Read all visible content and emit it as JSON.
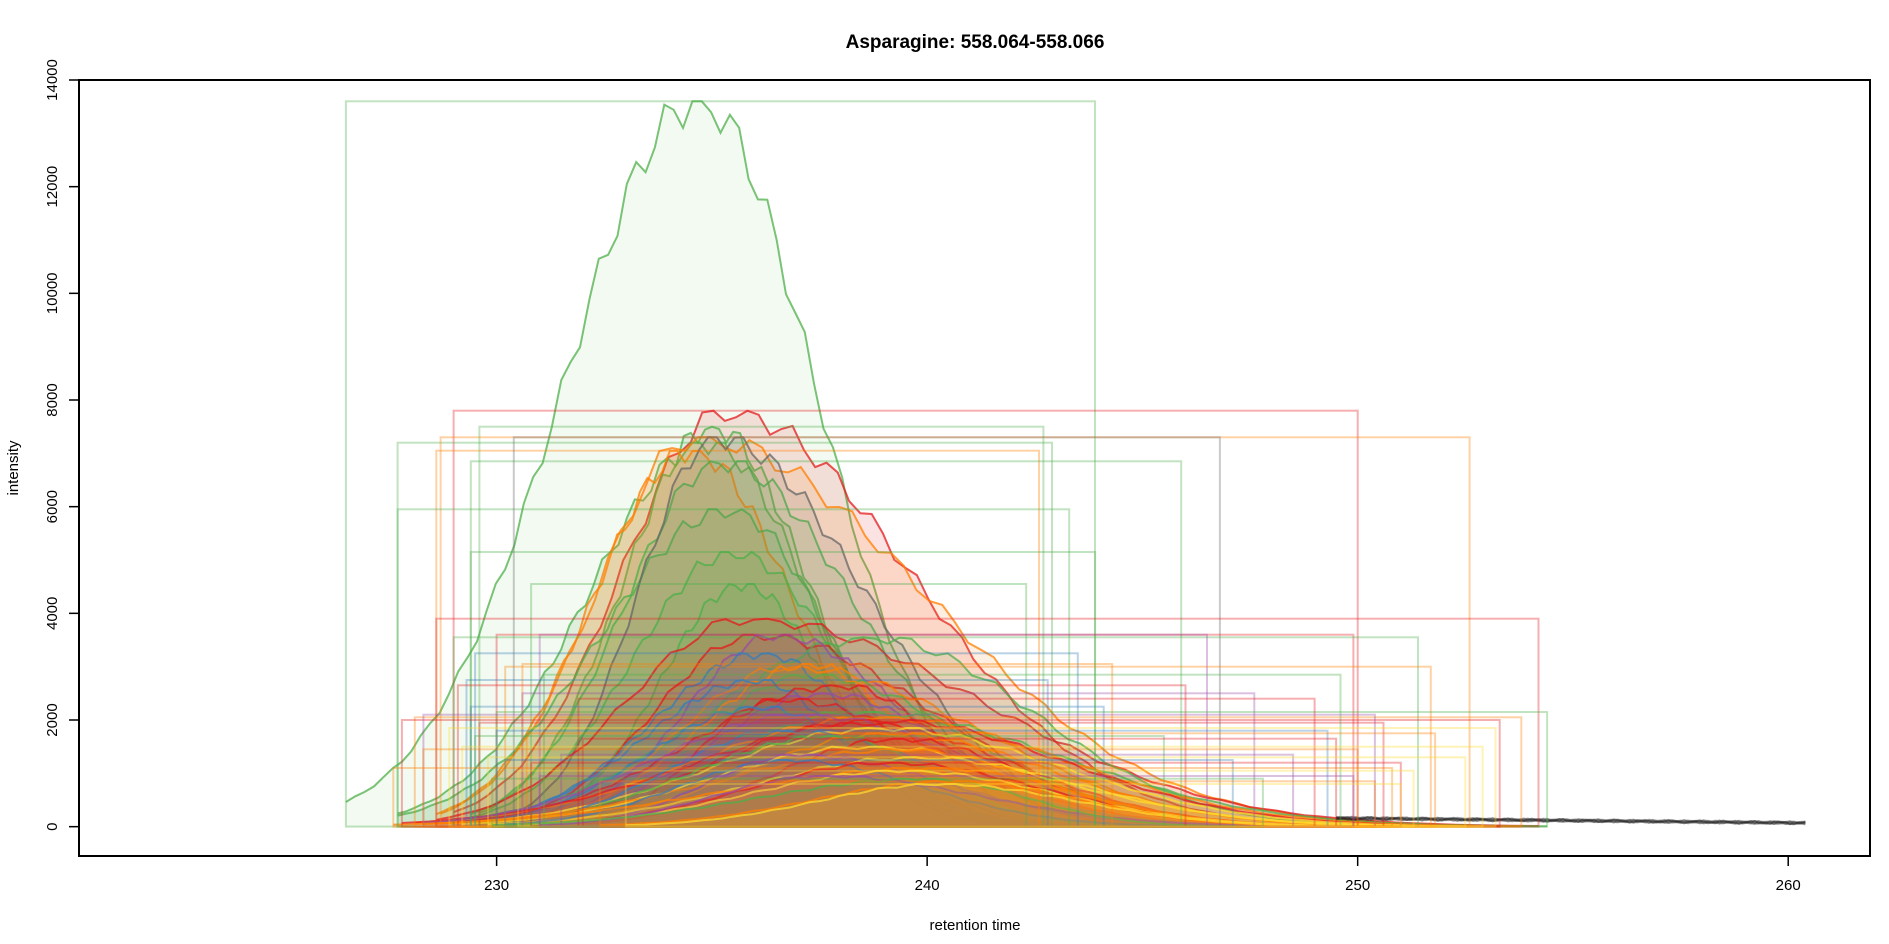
{
  "chart_data": {
    "type": "area",
    "title": "Asparagine: 558.064-558.066",
    "xlabel": "retention time",
    "ylabel": "intensity",
    "xlim": [
      220.3,
      261.9
    ],
    "ylim": [
      -550,
      14000
    ],
    "x_ticks": [
      230,
      240,
      250,
      260
    ],
    "y_ticks": [
      0,
      2000,
      4000,
      6000,
      8000,
      10000,
      12000,
      14000
    ],
    "x_tick_labels": [
      "230",
      "240",
      "250",
      "260"
    ],
    "y_tick_labels": [
      "0",
      "2000",
      "4000",
      "6000",
      "8000",
      "10000",
      "12000",
      "14000"
    ],
    "grid": false,
    "legend": "none",
    "colors": {
      "green": "#4daf4a",
      "red": "#e41a1c",
      "orange": "#ff7f00",
      "yellow": "#ffd92f",
      "blue": "#377eb8",
      "purple": "#984ea3",
      "gray": "#666666",
      "tail": "#1a1a1a"
    },
    "peaks": [
      {
        "color": "green",
        "height": 13600,
        "apex": 234.7,
        "start": 226.5,
        "end": 243.9,
        "fill": "#eef8ec",
        "fill_opacity": 0.7
      },
      {
        "color": "red",
        "height": 7800,
        "apex": 235.3,
        "start": 229.0,
        "end": 250.0
      },
      {
        "color": "green",
        "height": 7500,
        "apex": 235.0,
        "start": 229.6,
        "end": 242.7
      },
      {
        "color": "green",
        "height": 7200,
        "apex": 234.9,
        "start": 227.7,
        "end": 242.9
      },
      {
        "color": "orange",
        "height": 7300,
        "apex": 234.6,
        "start": 228.7,
        "end": 252.6
      },
      {
        "color": "orange",
        "height": 7050,
        "apex": 234.5,
        "start": 228.6,
        "end": 242.6
      },
      {
        "color": "green",
        "height": 6850,
        "apex": 235.2,
        "start": 229.4,
        "end": 245.9
      },
      {
        "color": "green",
        "height": 5950,
        "apex": 235.4,
        "start": 227.7,
        "end": 243.3
      },
      {
        "color": "gray",
        "height": 7300,
        "apex": 235.1,
        "start": 230.4,
        "end": 246.8
      },
      {
        "color": "green",
        "height": 5150,
        "apex": 235.5,
        "start": 229.4,
        "end": 243.9
      },
      {
        "color": "green",
        "height": 4550,
        "apex": 235.7,
        "start": 230.8,
        "end": 242.3
      },
      {
        "color": "red",
        "height": 3900,
        "apex": 235.8,
        "start": 228.6,
        "end": 254.2
      },
      {
        "color": "red",
        "height": 3600,
        "apex": 236.0,
        "start": 230.0,
        "end": 249.9
      },
      {
        "color": "green",
        "height": 3550,
        "apex": 238.7,
        "start": 229.0,
        "end": 251.4
      },
      {
        "color": "purple",
        "height": 3600,
        "apex": 236.5,
        "start": 231.0,
        "end": 246.5
      },
      {
        "color": "orange",
        "height": 3000,
        "apex": 236.8,
        "start": 230.2,
        "end": 251.7
      },
      {
        "color": "green",
        "height": 2850,
        "apex": 237.2,
        "start": 231.1,
        "end": 249.6
      },
      {
        "color": "blue",
        "height": 3250,
        "apex": 236.2,
        "start": 229.5,
        "end": 243.5
      },
      {
        "color": "orange",
        "height": 3050,
        "apex": 237.3,
        "start": 230.6,
        "end": 244.3
      },
      {
        "color": "blue",
        "height": 2750,
        "apex": 236.0,
        "start": 229.3,
        "end": 242.8
      },
      {
        "color": "red",
        "height": 2650,
        "apex": 238.0,
        "start": 229.1,
        "end": 246.0
      },
      {
        "color": "purple",
        "height": 2500,
        "apex": 237.6,
        "start": 230.6,
        "end": 247.6
      },
      {
        "color": "green",
        "height": 2150,
        "apex": 238.4,
        "start": 230.0,
        "end": 254.4
      },
      {
        "color": "red",
        "height": 2400,
        "apex": 236.5,
        "start": 231.9,
        "end": 249.0
      },
      {
        "color": "blue",
        "height": 2250,
        "apex": 236.1,
        "start": 229.4,
        "end": 244.1
      },
      {
        "color": "orange",
        "height": 2050,
        "apex": 238.8,
        "start": 228.1,
        "end": 253.8
      },
      {
        "color": "red",
        "height": 2000,
        "apex": 239.0,
        "start": 227.8,
        "end": 253.3
      },
      {
        "color": "purple",
        "height": 2100,
        "apex": 237.1,
        "start": 228.3,
        "end": 250.4
      },
      {
        "color": "red",
        "height": 1950,
        "apex": 238.4,
        "start": 229.6,
        "end": 250.6
      },
      {
        "color": "yellow",
        "height": 1850,
        "apex": 238.9,
        "start": 228.9,
        "end": 253.2
      },
      {
        "color": "blue",
        "height": 1800,
        "apex": 236.6,
        "start": 230.0,
        "end": 249.3
      },
      {
        "color": "orange",
        "height": 1750,
        "apex": 239.1,
        "start": 230.7,
        "end": 251.8
      },
      {
        "color": "green",
        "height": 1700,
        "apex": 237.8,
        "start": 229.5,
        "end": 245.5
      },
      {
        "color": "red",
        "height": 1650,
        "apex": 239.3,
        "start": 232.0,
        "end": 249.5
      },
      {
        "color": "yellow",
        "height": 1500,
        "apex": 238.6,
        "start": 229.2,
        "end": 252.9
      },
      {
        "color": "orange",
        "height": 1450,
        "apex": 239.5,
        "start": 228.3,
        "end": 250.0
      },
      {
        "color": "purple",
        "height": 1350,
        "apex": 237.0,
        "start": 231.5,
        "end": 248.5
      },
      {
        "color": "yellow",
        "height": 1300,
        "apex": 239.8,
        "start": 229.8,
        "end": 252.5
      },
      {
        "color": "blue",
        "height": 1250,
        "apex": 236.8,
        "start": 230.2,
        "end": 247.1
      },
      {
        "color": "red",
        "height": 1200,
        "apex": 239.1,
        "start": 230.8,
        "end": 251.0
      },
      {
        "color": "orange",
        "height": 1100,
        "apex": 240.2,
        "start": 227.6,
        "end": 250.8
      },
      {
        "color": "yellow",
        "height": 1050,
        "apex": 239.4,
        "start": 230.5,
        "end": 251.3
      },
      {
        "color": "purple",
        "height": 950,
        "apex": 237.6,
        "start": 231.0,
        "end": 249.9
      },
      {
        "color": "green",
        "height": 900,
        "apex": 240.0,
        "start": 229.9,
        "end": 247.8
      },
      {
        "color": "orange",
        "height": 850,
        "apex": 240.6,
        "start": 232.4,
        "end": 250.4
      },
      {
        "color": "yellow",
        "height": 800,
        "apex": 240.3,
        "start": 233.0,
        "end": 251.0
      }
    ],
    "tail_series": {
      "color": "tail",
      "x_start": 249.5,
      "x_end": 260.4,
      "y_start": 160,
      "y_end": 70
    }
  }
}
